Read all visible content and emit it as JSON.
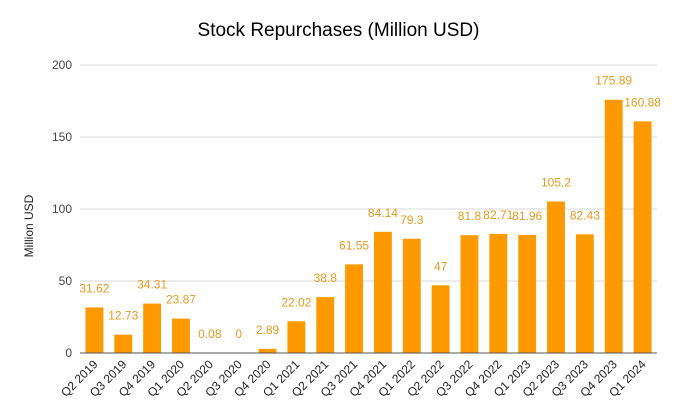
{
  "chart_data": {
    "type": "bar",
    "title": "Stock Repurchases (Million USD)",
    "xlabel": "",
    "ylabel": "Million USD",
    "ylim": [
      0,
      200
    ],
    "yticks": [
      0,
      50,
      100,
      150,
      200
    ],
    "grid": true,
    "legend": "none",
    "bar_color": "#ff9900",
    "label_color": "#e69a1f",
    "categories": [
      "Q2 2019",
      "Q3 2019",
      "Q4 2019",
      "Q1 2020",
      "Q2 2020",
      "Q3 2020",
      "Q4 2020",
      "Q1 2021",
      "Q2 2021",
      "Q3 2021",
      "Q4 2021",
      "Q1 2022",
      "Q2 2022",
      "Q3 2022",
      "Q4 2022",
      "Q1 2023",
      "Q2 2023",
      "Q3 2023",
      "Q4 2023",
      "Q1 2024"
    ],
    "values": [
      31.62,
      12.73,
      34.31,
      23.87,
      0.08,
      0,
      2.89,
      22.02,
      38.8,
      61.55,
      84.14,
      79.3,
      47,
      81.8,
      82.71,
      81.96,
      105.2,
      82.43,
      175.89,
      160.88
    ],
    "data_labels": [
      "31.62",
      "12.73",
      "34.31",
      "23.87",
      "0.08",
      "0",
      "2.89",
      "22.02",
      "38.8",
      "61.55",
      "84.14",
      "79.3",
      "47",
      "81.8",
      "82.71",
      "81.96",
      "105.2",
      "82.43",
      "175.89",
      "160.88"
    ]
  }
}
